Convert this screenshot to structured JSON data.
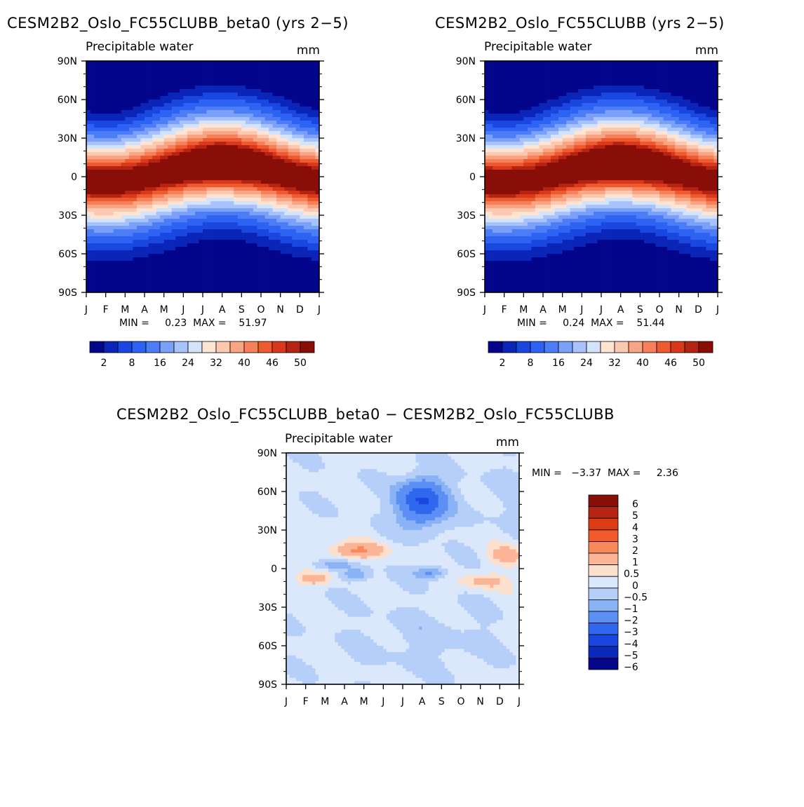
{
  "colors": {
    "abs_scale": [
      "#03058a",
      "#0a25b8",
      "#1a47e0",
      "#2e62f2",
      "#4d7cf7",
      "#7aa0fa",
      "#a8c3fb",
      "#d4e3fc",
      "#ffe4d4",
      "#fdc8b0",
      "#f9a482",
      "#f5805a",
      "#ee5a30",
      "#d9381a",
      "#b52412",
      "#8a0e08"
    ],
    "diff_scale": [
      "#8a0e08",
      "#b52412",
      "#dd3a16",
      "#f15a2c",
      "#f7895c",
      "#fbb596",
      "#fde1cf",
      "#dbe8fb",
      "#b6cff9",
      "#8ab3f6",
      "#5c8ff4",
      "#2f68ef",
      "#1a47e0",
      "#0a2bb9",
      "#03058a"
    ]
  },
  "panels": [
    {
      "id": "beta0",
      "title": "CESM2B2_Oslo_FC55CLUBB_beta0 (yrs 2−5)",
      "variable": "Precipitable water",
      "units": "mm",
      "stats": "MIN =     0.23  MAX =    51.97"
    },
    {
      "id": "control",
      "title": "CESM2B2_Oslo_FC55CLUBB (yrs 2−5)",
      "variable": "Precipitable water",
      "units": "mm",
      "stats": "MIN =     0.24  MAX =    51.44"
    },
    {
      "id": "diff",
      "title": "CESM2B2_Oslo_FC55CLUBB_beta0 − CESM2B2_Oslo_FC55CLUBB",
      "variable": "Precipitable water",
      "units": "mm",
      "stats": "MIN =   −3.37  MAX =     2.36"
    }
  ],
  "chart_data": [
    {
      "type": "heatmap",
      "title": "CESM2B2_Oslo_FC55CLUBB_beta0 (yrs 2-5)",
      "subtitle": "Precipitable water",
      "units": "mm",
      "x_ticks": [
        "J",
        "F",
        "M",
        "A",
        "M",
        "J",
        "J",
        "A",
        "S",
        "O",
        "N",
        "D",
        "J"
      ],
      "y_ticks": [
        "90N",
        "60N",
        "30N",
        "0",
        "30S",
        "60S",
        "90S"
      ],
      "ylim": [
        -90,
        90
      ],
      "min": 0.23,
      "max": 51.97,
      "colorbar_labels": [
        "2",
        "8",
        "16",
        "24",
        "32",
        "40",
        "46",
        "50"
      ]
    },
    {
      "type": "heatmap",
      "title": "CESM2B2_Oslo_FC55CLUBB (yrs 2-5)",
      "subtitle": "Precipitable water",
      "units": "mm",
      "x_ticks": [
        "J",
        "F",
        "M",
        "A",
        "M",
        "J",
        "J",
        "A",
        "S",
        "O",
        "N",
        "D",
        "J"
      ],
      "y_ticks": [
        "90N",
        "60N",
        "30N",
        "0",
        "30S",
        "60S",
        "90S"
      ],
      "ylim": [
        -90,
        90
      ],
      "min": 0.24,
      "max": 51.44,
      "colorbar_labels": [
        "2",
        "8",
        "16",
        "24",
        "32",
        "40",
        "46",
        "50"
      ]
    },
    {
      "type": "heatmap",
      "title": "CESM2B2_Oslo_FC55CLUBB_beta0 - CESM2B2_Oslo_FC55CLUBB",
      "subtitle": "Precipitable water",
      "units": "mm",
      "x_ticks": [
        "J",
        "F",
        "M",
        "A",
        "M",
        "J",
        "J",
        "A",
        "S",
        "O",
        "N",
        "D",
        "J"
      ],
      "y_ticks": [
        "90N",
        "60N",
        "30N",
        "0",
        "30S",
        "60S",
        "90S"
      ],
      "ylim": [
        -90,
        90
      ],
      "min": -3.37,
      "max": 2.36,
      "colorbar_labels": [
        "6",
        "5",
        "4",
        "3",
        "2",
        "1",
        "0.5",
        "0",
        "−0.5",
        "−1",
        "−2",
        "−3",
        "−4",
        "−5",
        "−6"
      ]
    }
  ]
}
